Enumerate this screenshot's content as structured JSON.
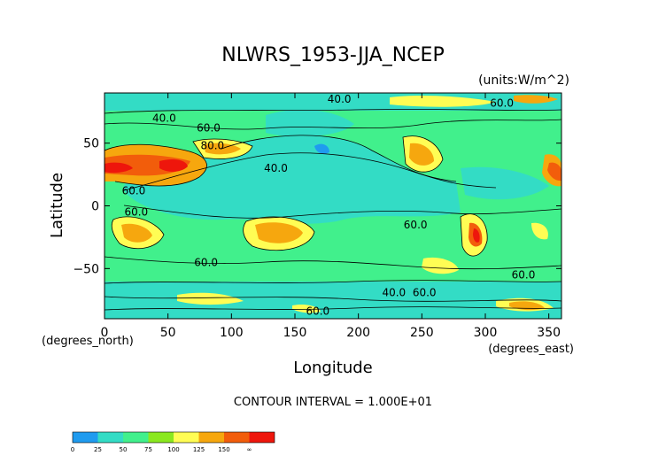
{
  "chart_data": {
    "type": "heatmap",
    "title": "NLWRS_1953-JJA_NCEP",
    "units_label": "(units:W/m^2)",
    "xlabel": "Longitude",
    "ylabel": "Latitude",
    "x_unit_label": "(degrees_east)",
    "y_unit_label": "(degrees_north)",
    "xlim": [
      0,
      360
    ],
    "ylim": [
      -90,
      90
    ],
    "x_ticks": [
      0,
      50,
      100,
      150,
      200,
      250,
      300,
      350
    ],
    "y_ticks": [
      -50,
      0,
      50
    ],
    "x_tick_labels": [
      "0",
      "50",
      "100",
      "150",
      "200",
      "250",
      "300",
      "350"
    ],
    "y_tick_labels": [
      "−50",
      "0",
      "50"
    ],
    "contour_interval_text": "CONTOUR INTERVAL = 1.000E+01",
    "contour_labels": [
      {
        "text": "40.0",
        "lon": 185,
        "lat": 85
      },
      {
        "text": "60.0",
        "lon": 313,
        "lat": 82
      },
      {
        "text": "40.0",
        "lon": 47,
        "lat": 70
      },
      {
        "text": "60.0",
        "lon": 82,
        "lat": 62
      },
      {
        "text": "80.0",
        "lon": 85,
        "lat": 48
      },
      {
        "text": "40.0",
        "lon": 135,
        "lat": 30
      },
      {
        "text": "60.0",
        "lon": 23,
        "lat": 12
      },
      {
        "text": "60.0",
        "lon": 25,
        "lat": -5
      },
      {
        "text": "60.0",
        "lon": 245,
        "lat": -15
      },
      {
        "text": "60.0",
        "lon": 80,
        "lat": -45
      },
      {
        "text": "40.0",
        "lon": 228,
        "lat": -69
      },
      {
        "text": "60.0",
        "lon": 252,
        "lat": -69
      },
      {
        "text": "60.0",
        "lon": 168,
        "lat": -84
      },
      {
        "text": "60.0",
        "lon": 330,
        "lat": -55
      }
    ],
    "colorbar": {
      "levels": [
        0,
        25,
        50,
        75,
        100,
        125,
        150
      ],
      "tick_labels": [
        "0",
        "25",
        "50",
        "75",
        "100",
        "125",
        "150",
        "∞"
      ],
      "colors": [
        "#1f9bef",
        "#33dcc5",
        "#41f08c",
        "#8ae81f",
        "#fffd54",
        "#f6a70e",
        "#f25d0b",
        "#ee160c"
      ]
    }
  }
}
